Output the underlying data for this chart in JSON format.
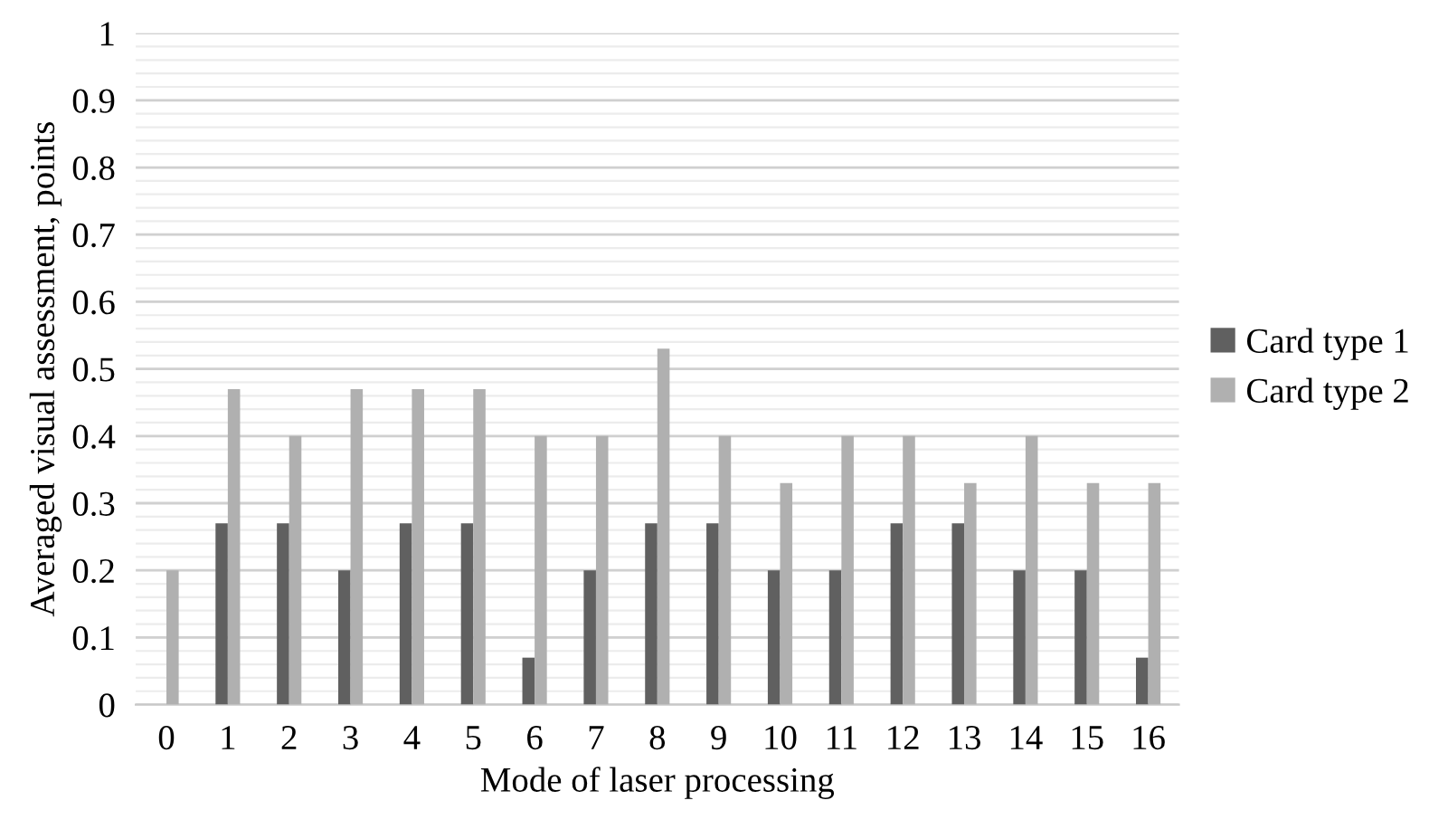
{
  "chart_data": {
    "type": "bar",
    "xlabel": "Mode of laser processing",
    "ylabel": "Averaged visual assessment, points",
    "categories": [
      "0",
      "1",
      "2",
      "3",
      "4",
      "5",
      "6",
      "7",
      "8",
      "9",
      "10",
      "11",
      "12",
      "13",
      "14",
      "15",
      "16"
    ],
    "series": [
      {
        "name": "Card type 1",
        "color": "#606060",
        "values": [
          0,
          0.27,
          0.27,
          0.2,
          0.27,
          0.27,
          0.07,
          0.2,
          0.27,
          0.27,
          0.2,
          0.2,
          0.27,
          0.27,
          0.2,
          0.2,
          0.07
        ]
      },
      {
        "name": "Card type 2",
        "color": "#b0b0b0",
        "values": [
          0.2,
          0.47,
          0.4,
          0.47,
          0.47,
          0.47,
          0.4,
          0.4,
          0.53,
          0.4,
          0.33,
          0.4,
          0.4,
          0.33,
          0.4,
          0.33,
          0.33
        ]
      }
    ],
    "ylim": [
      0,
      1
    ],
    "yticks": [
      0,
      0.1,
      0.2,
      0.3,
      0.4,
      0.5,
      0.6,
      0.7,
      0.8,
      0.9,
      1
    ],
    "grid": "y",
    "legend": "right"
  }
}
